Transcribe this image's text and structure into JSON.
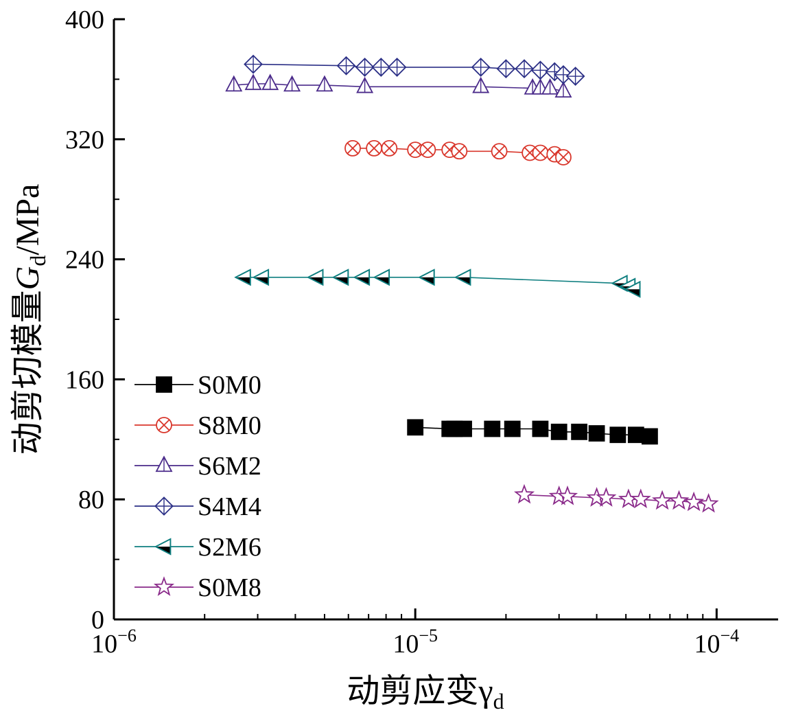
{
  "chart_data": {
    "type": "scatter",
    "title": "",
    "xlabel": "动剪应变γ",
    "xlabel_sub": "d",
    "ylabel_prefix": "动剪切模量",
    "ylabel_symbol": "G",
    "ylabel_sub": "d",
    "ylabel_unit": "/MPa",
    "x_scale": "log",
    "xlim": [
      1e-06,
      0.00016
    ],
    "ylim": [
      0,
      400
    ],
    "x_ticks": [
      {
        "value": 1e-06,
        "base": "10",
        "exp": "−6"
      },
      {
        "value": 1e-05,
        "base": "10",
        "exp": "−5"
      },
      {
        "value": 0.0001,
        "base": "10",
        "exp": "−4"
      }
    ],
    "y_ticks": [
      {
        "value": 0,
        "label": "0"
      },
      {
        "value": 80,
        "label": "80"
      },
      {
        "value": 160,
        "label": "160"
      },
      {
        "value": 240,
        "label": "240"
      },
      {
        "value": 320,
        "label": "320"
      },
      {
        "value": 400,
        "label": "400"
      }
    ],
    "grid": false,
    "legend_position": "left-bottom",
    "series": [
      {
        "name": "S0M0",
        "marker": "square",
        "color": "#000000",
        "fill": "#000000",
        "points": [
          {
            "x": 1e-05,
            "y": 128
          },
          {
            "x": 1.3e-05,
            "y": 127
          },
          {
            "x": 1.35e-05,
            "y": 127
          },
          {
            "x": 1.45e-05,
            "y": 127
          },
          {
            "x": 1.8e-05,
            "y": 127
          },
          {
            "x": 2.1e-05,
            "y": 127
          },
          {
            "x": 2.6e-05,
            "y": 127
          },
          {
            "x": 3e-05,
            "y": 125
          },
          {
            "x": 3.5e-05,
            "y": 125
          },
          {
            "x": 4e-05,
            "y": 124
          },
          {
            "x": 4.7e-05,
            "y": 123
          },
          {
            "x": 5.4e-05,
            "y": 123
          },
          {
            "x": 6e-05,
            "y": 122
          }
        ]
      },
      {
        "name": "S8M0",
        "marker": "circle-x",
        "color": "#d9362b",
        "fill": "none",
        "points": [
          {
            "x": 6.2e-06,
            "y": 314
          },
          {
            "x": 7.3e-06,
            "y": 314
          },
          {
            "x": 8.2e-06,
            "y": 314
          },
          {
            "x": 1e-05,
            "y": 313
          },
          {
            "x": 1.1e-05,
            "y": 313
          },
          {
            "x": 1.3e-05,
            "y": 313
          },
          {
            "x": 1.4e-05,
            "y": 312
          },
          {
            "x": 1.9e-05,
            "y": 312
          },
          {
            "x": 2.4e-05,
            "y": 311
          },
          {
            "x": 2.6e-05,
            "y": 311
          },
          {
            "x": 2.9e-05,
            "y": 310
          },
          {
            "x": 3.1e-05,
            "y": 308
          }
        ]
      },
      {
        "name": "S6M2",
        "marker": "triangle-up",
        "color": "#4a2a8a",
        "fill": "none",
        "points": [
          {
            "x": 2.5e-06,
            "y": 356
          },
          {
            "x": 2.9e-06,
            "y": 357
          },
          {
            "x": 3.3e-06,
            "y": 357
          },
          {
            "x": 3.9e-06,
            "y": 356
          },
          {
            "x": 5e-06,
            "y": 356
          },
          {
            "x": 6.8e-06,
            "y": 355
          },
          {
            "x": 1.65e-05,
            "y": 355
          },
          {
            "x": 2.45e-05,
            "y": 354
          },
          {
            "x": 2.6e-05,
            "y": 354
          },
          {
            "x": 2.8e-05,
            "y": 354
          },
          {
            "x": 3.1e-05,
            "y": 352
          }
        ]
      },
      {
        "name": "S4M4",
        "marker": "diamond-plus",
        "color": "#2b2f86",
        "fill": "none",
        "points": [
          {
            "x": 2.9e-06,
            "y": 370
          },
          {
            "x": 5.9e-06,
            "y": 369
          },
          {
            "x": 6.8e-06,
            "y": 368
          },
          {
            "x": 7.7e-06,
            "y": 368
          },
          {
            "x": 8.7e-06,
            "y": 368
          },
          {
            "x": 1.65e-05,
            "y": 368
          },
          {
            "x": 2e-05,
            "y": 367
          },
          {
            "x": 2.3e-05,
            "y": 367
          },
          {
            "x": 2.6e-05,
            "y": 366
          },
          {
            "x": 2.9e-05,
            "y": 365
          },
          {
            "x": 3.1e-05,
            "y": 363
          },
          {
            "x": 3.4e-05,
            "y": 362
          }
        ]
      },
      {
        "name": "S2M6",
        "marker": "triangle-left",
        "color": "#0f7f80",
        "fill": "half",
        "points": [
          {
            "x": 2.7e-06,
            "y": 228
          },
          {
            "x": 3.1e-06,
            "y": 228
          },
          {
            "x": 4.7e-06,
            "y": 228
          },
          {
            "x": 5.7e-06,
            "y": 228
          },
          {
            "x": 6.7e-06,
            "y": 228
          },
          {
            "x": 7.8e-06,
            "y": 228
          },
          {
            "x": 1.1e-05,
            "y": 228
          },
          {
            "x": 1.45e-05,
            "y": 228
          },
          {
            "x": 4.8e-05,
            "y": 224
          },
          {
            "x": 5.1e-05,
            "y": 222
          },
          {
            "x": 5.3e-05,
            "y": 220
          }
        ]
      },
      {
        "name": "S0M8",
        "marker": "star",
        "color": "#8a2a8a",
        "fill": "none",
        "points": [
          {
            "x": 2.3e-05,
            "y": 83
          },
          {
            "x": 3e-05,
            "y": 82
          },
          {
            "x": 3.2e-05,
            "y": 82
          },
          {
            "x": 4e-05,
            "y": 81
          },
          {
            "x": 4.3e-05,
            "y": 81
          },
          {
            "x": 5.1e-05,
            "y": 80
          },
          {
            "x": 5.6e-05,
            "y": 80
          },
          {
            "x": 6.6e-05,
            "y": 79
          },
          {
            "x": 7.5e-05,
            "y": 79
          },
          {
            "x": 8.4e-05,
            "y": 78
          },
          {
            "x": 9.4e-05,
            "y": 77
          }
        ]
      }
    ]
  }
}
